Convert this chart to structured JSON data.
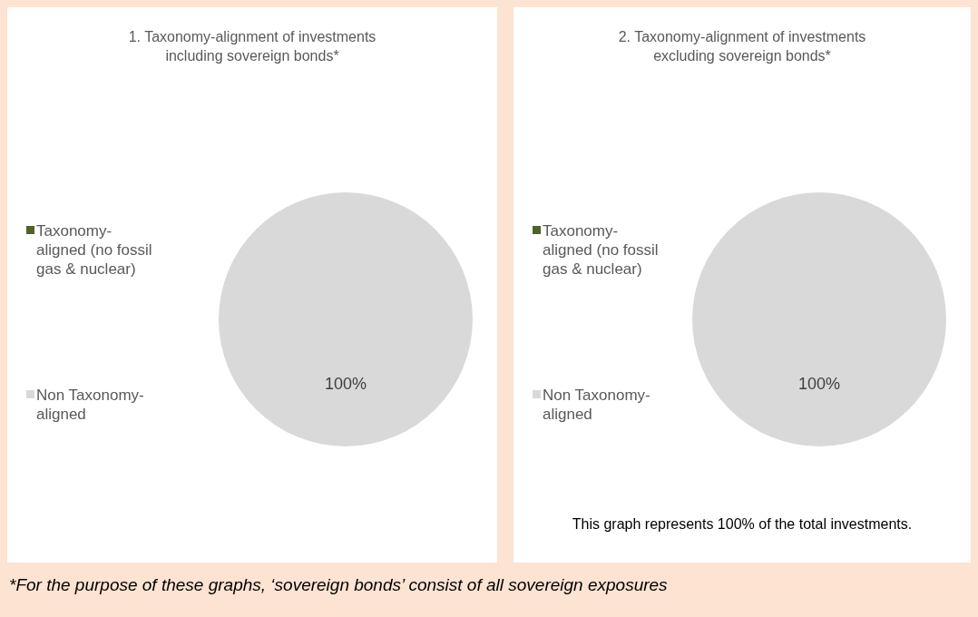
{
  "chart_data": [
    {
      "type": "pie",
      "title": "1. Taxonomy-alignment of investments including sovereign bonds*",
      "categories": [
        "Taxonomy-aligned (no fossil gas & nuclear)",
        "Non Taxonomy-aligned"
      ],
      "values": [
        0,
        100
      ],
      "colors": [
        "#4f6228",
        "#d9d9d9"
      ],
      "value_labels": [
        null,
        "100%"
      ],
      "legend": "left",
      "annotations": [
        "*For the purpose of these graphs, ‘sovereign bonds’ consist of all sovereign exposures"
      ]
    },
    {
      "type": "pie",
      "title": "2. Taxonomy-alignment of investments excluding sovereign bonds*",
      "categories": [
        "Taxonomy-aligned (no fossil gas & nuclear)",
        "Non Taxonomy-aligned"
      ],
      "values": [
        0,
        100
      ],
      "colors": [
        "#4f6228",
        "#d9d9d9"
      ],
      "value_labels": [
        null,
        "100%"
      ],
      "legend": "left",
      "annotations": [
        "This graph represents 100% of the total investments."
      ]
    }
  ]
}
